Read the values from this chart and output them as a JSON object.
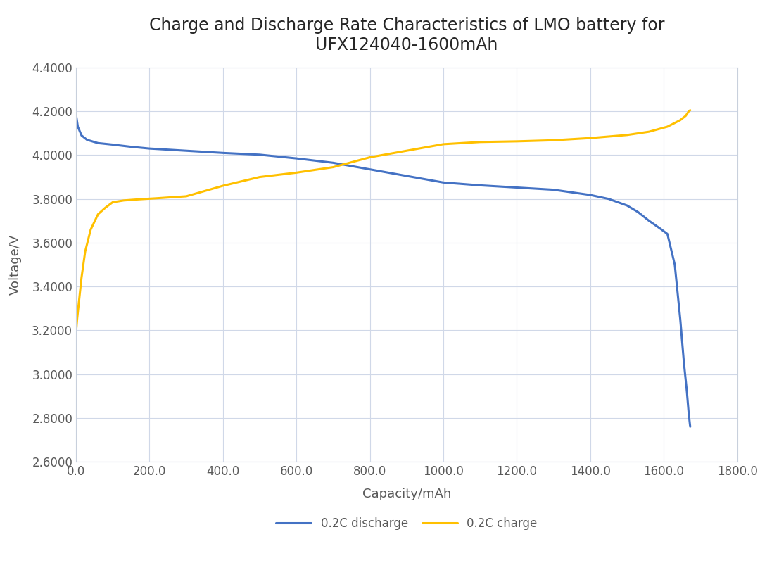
{
  "title_line1": "Charge and Discharge Rate Characteristics of LMO battery for",
  "title_line2": "UFX124040-1600mAh",
  "xlabel": "Capacity/mAh",
  "ylabel": "Voltage/V",
  "xlim": [
    0,
    1800
  ],
  "ylim": [
    2.6,
    4.4
  ],
  "xticks": [
    0.0,
    200.0,
    400.0,
    600.0,
    800.0,
    1000.0,
    1200.0,
    1400.0,
    1600.0,
    1800.0
  ],
  "yticks": [
    2.6,
    2.8,
    3.0,
    3.2,
    3.4,
    3.6,
    3.8,
    4.0,
    4.2,
    4.4
  ],
  "discharge_color": "#4472c4",
  "charge_color": "#ffc000",
  "discharge_label": "0.2C discharge",
  "charge_label": "0.2C charge",
  "background_color": "#ffffff",
  "grid_color": "#d0d8e8",
  "tick_label_color": "#595959",
  "axis_label_color": "#595959",
  "discharge_x": [
    0,
    5,
    15,
    30,
    60,
    100,
    150,
    200,
    300,
    400,
    500,
    600,
    700,
    800,
    900,
    1000,
    1100,
    1200,
    1300,
    1400,
    1450,
    1500,
    1530,
    1560,
    1590,
    1610,
    1630,
    1645,
    1655,
    1663,
    1668,
    1672
  ],
  "discharge_y": [
    4.185,
    4.13,
    4.09,
    4.07,
    4.055,
    4.048,
    4.038,
    4.03,
    4.02,
    4.01,
    4.002,
    3.985,
    3.965,
    3.935,
    3.905,
    3.875,
    3.862,
    3.852,
    3.842,
    3.818,
    3.8,
    3.77,
    3.74,
    3.7,
    3.665,
    3.64,
    3.5,
    3.25,
    3.05,
    2.92,
    2.82,
    2.76
  ],
  "charge_x": [
    0,
    3,
    8,
    15,
    25,
    40,
    60,
    80,
    100,
    130,
    170,
    220,
    300,
    400,
    500,
    600,
    700,
    800,
    900,
    1000,
    1100,
    1200,
    1300,
    1400,
    1500,
    1560,
    1610,
    1645,
    1660,
    1668,
    1672
  ],
  "charge_y": [
    3.19,
    3.25,
    3.33,
    3.44,
    3.56,
    3.66,
    3.73,
    3.76,
    3.785,
    3.793,
    3.798,
    3.803,
    3.812,
    3.86,
    3.9,
    3.92,
    3.945,
    3.99,
    4.02,
    4.05,
    4.06,
    4.063,
    4.068,
    4.078,
    4.092,
    4.107,
    4.13,
    4.16,
    4.18,
    4.2,
    4.205
  ],
  "line_width": 2.2,
  "title_fontsize": 17,
  "axis_label_fontsize": 13,
  "tick_fontsize": 12,
  "legend_fontsize": 12
}
